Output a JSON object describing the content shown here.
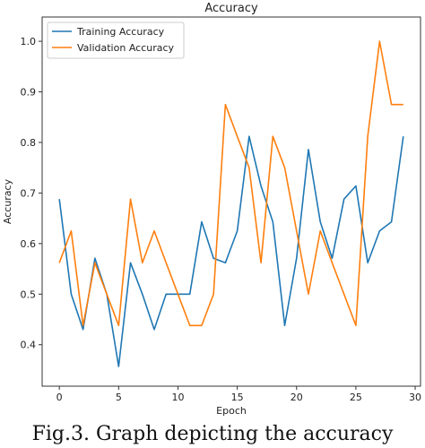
{
  "chart_data": {
    "type": "line",
    "title": "Accuracy",
    "xlabel": "Epoch",
    "ylabel": "Accuracy",
    "xlim": [
      -1.45,
      30.45
    ],
    "ylim": [
      0.318,
      1.048
    ],
    "xticks": [
      0,
      5,
      10,
      15,
      20,
      25,
      30
    ],
    "yticks": [
      0.4,
      0.5,
      0.6,
      0.7,
      0.8,
      0.9,
      1.0
    ],
    "x": [
      0,
      1,
      2,
      3,
      4,
      5,
      6,
      7,
      8,
      9,
      10,
      11,
      12,
      13,
      14,
      15,
      16,
      17,
      18,
      19,
      20,
      21,
      22,
      23,
      24,
      25,
      26,
      27,
      28,
      29
    ],
    "series": [
      {
        "name": "Training Accuracy",
        "color": "#1f77b4",
        "values": [
          0.688,
          0.5,
          0.43,
          0.571,
          0.5,
          0.357,
          0.562,
          0.5,
          0.43,
          0.5,
          0.5,
          0.5,
          0.643,
          0.571,
          0.562,
          0.625,
          0.812,
          0.714,
          0.643,
          0.438,
          0.571,
          0.786,
          0.643,
          0.571,
          0.688,
          0.714,
          0.562,
          0.625,
          0.643,
          0.812
        ]
      },
      {
        "name": "Validation Accuracy",
        "color": "#ff7f0e",
        "values": [
          0.562,
          0.625,
          0.438,
          0.562,
          0.5,
          0.438,
          0.688,
          0.562,
          0.625,
          0.562,
          0.5,
          0.438,
          0.438,
          0.5,
          0.875,
          0.812,
          0.75,
          0.562,
          0.812,
          0.75,
          0.625,
          0.5,
          0.625,
          0.562,
          0.5,
          0.438,
          0.812,
          1.0,
          0.875,
          0.875
        ]
      }
    ],
    "legend_position": "top-left",
    "grid": false
  },
  "caption": "Fig.3. Graph depicting the accuracy"
}
